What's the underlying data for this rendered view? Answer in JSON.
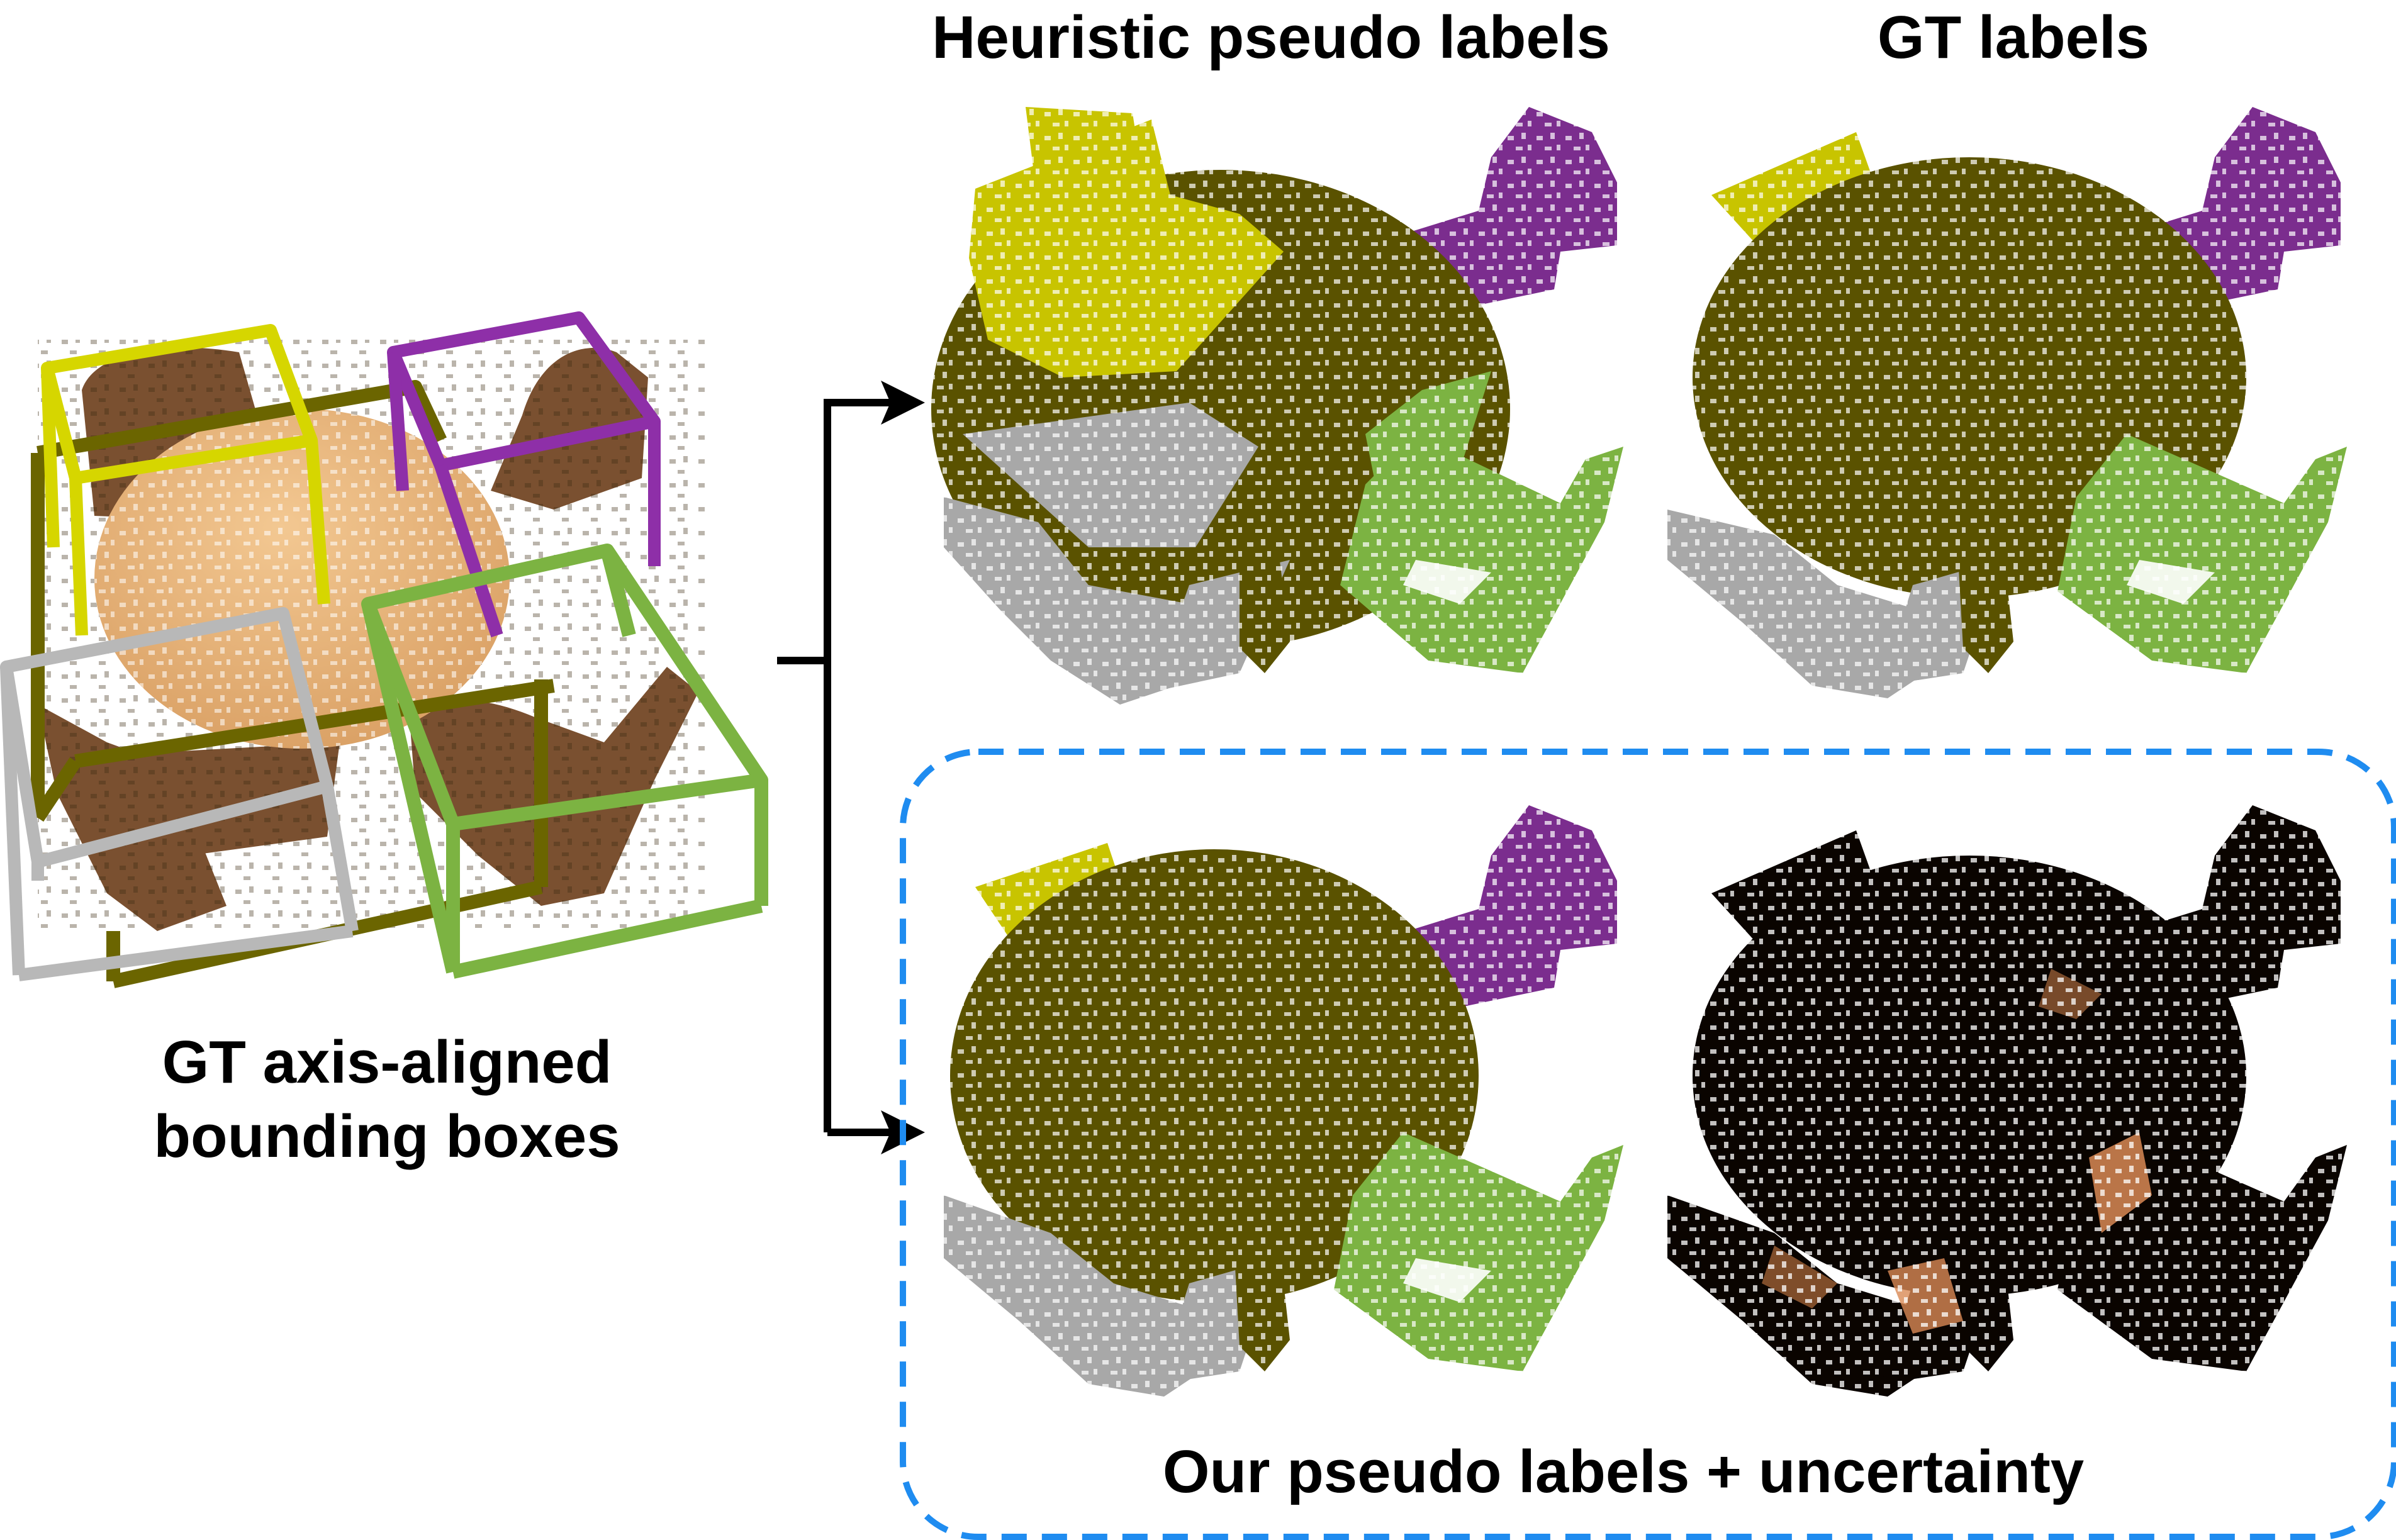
{
  "captions": {
    "heuristic": "Heuristic pseudo labels",
    "gt": "GT labels",
    "left_line1": "GT axis-aligned",
    "left_line2": "bounding boxes",
    "ours": "Our pseudo labels + uncertainty"
  },
  "colors": {
    "chair_yellow": "#c8c400",
    "chair_purple": "#7b2d8e",
    "chair_green": "#7cb342",
    "chair_gray": "#a8a8a8",
    "table_olive": "#5a5200",
    "table_tan": "#e8b278",
    "wood_brown": "#7a5030",
    "box_olive": "#6b6500",
    "uncertainty_dark": "#0a0400",
    "uncertainty_hot": "#d98a55",
    "dashed_blue": "#1f8cf0",
    "arrow": "#000000"
  }
}
